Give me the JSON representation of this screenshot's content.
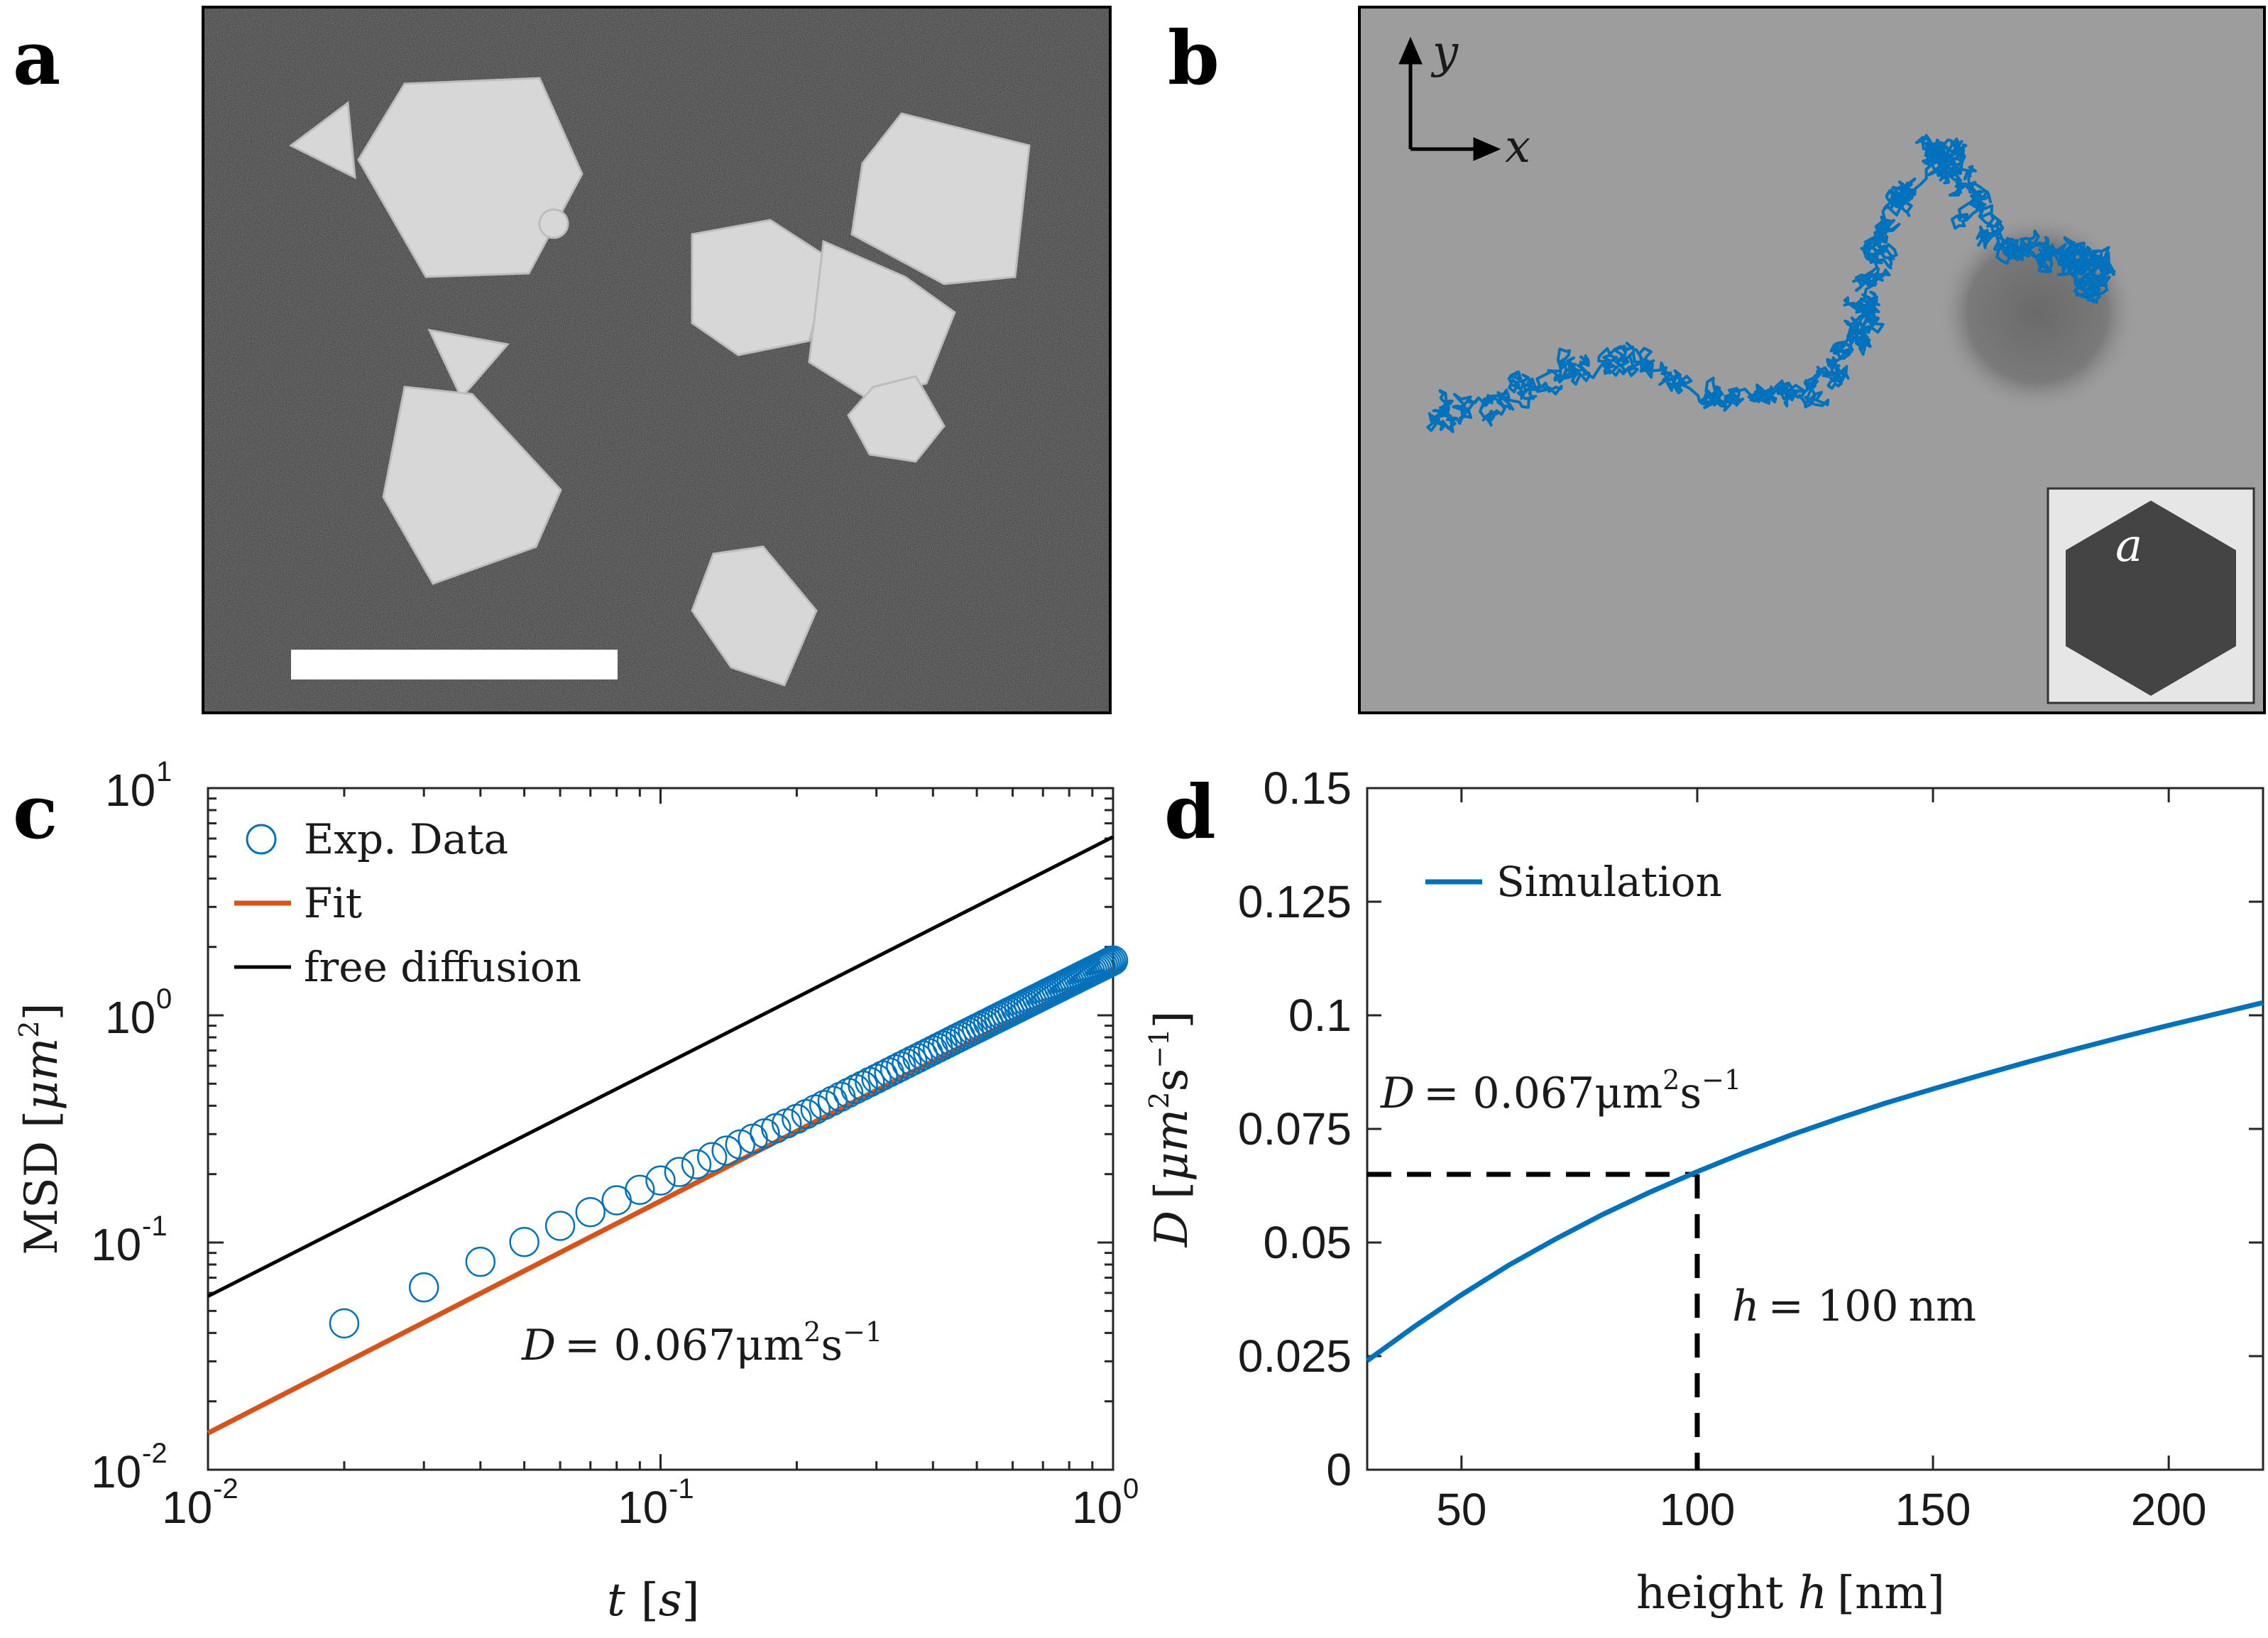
{
  "panels": {
    "a": {
      "letter": "a"
    },
    "b": {
      "letter": "b",
      "axis_y": "y",
      "axis_x": "x",
      "inset_label": "a"
    },
    "c": {
      "letter": "c"
    },
    "d": {
      "letter": "d"
    }
  },
  "colors": {
    "blue": "#0072BD",
    "orange": "#D95319",
    "black": "#000000"
  },
  "chart_data": [
    {
      "panel": "c",
      "type": "scatter",
      "scale": "log-log",
      "xlim": [
        0.01,
        1
      ],
      "ylim": [
        0.01,
        10
      ],
      "grid": false,
      "legend_placement": "top-left",
      "x_ticks": [
        "10",
        "10"
      ],
      "x_tick_exponents": [
        "-2",
        "-1",
        "0"
      ],
      "y_ticks": [
        "10",
        "10",
        "10",
        "10"
      ],
      "y_tick_exponents": [
        "-2",
        "-1",
        "0",
        "1"
      ],
      "xlabel": {
        "var": "t",
        "unit": "s"
      },
      "ylabel": {
        "name": "MSD",
        "unit": "μm",
        "unit_exp": "2"
      },
      "annotation": {
        "lhs": "D",
        "value": "= 0.067μm",
        "exp1": "2",
        "mid": "s",
        "exp2": "−1"
      },
      "series": [
        {
          "name": "Exp. Data",
          "kind": "markers",
          "x_start": 0.02,
          "x_step": 0.01,
          "x_end": 1.0,
          "model": {
            "coef": 1.49,
            "exponent": 0.9,
            "curve_gain": 0.17,
            "curve_from": 0.2
          }
        },
        {
          "name": "Fit",
          "kind": "line",
          "x": [
            0.01,
            1.0
          ],
          "y": [
            0.0145,
            1.6
          ]
        },
        {
          "name": "free diffusion",
          "kind": "line",
          "x": [
            0.01,
            1.0
          ],
          "y": [
            0.058,
            6.1
          ]
        }
      ]
    },
    {
      "panel": "d",
      "type": "line",
      "xlim": [
        30,
        220
      ],
      "ylim": [
        0,
        0.15
      ],
      "grid": false,
      "legend_placement": "top-left",
      "x_ticks": [
        "50",
        "100",
        "150",
        "200"
      ],
      "y_ticks": [
        "0",
        "0.025",
        "0.05",
        "0.075",
        "0.1",
        "0.125",
        "0.15"
      ],
      "xlabel": {
        "name": "height ",
        "var": "h",
        "unit": "nm"
      },
      "ylabel": {
        "var": "D",
        "unit": "μm",
        "unit_exp1": "2",
        "unit_mid": "s",
        "unit_exp2": "−1"
      },
      "annotations": {
        "d_value": {
          "lhs": "D",
          "value": "= 0.067μm",
          "exp1": "2",
          "mid": "s",
          "exp2": "−1"
        },
        "h_value": {
          "lhs": "h",
          "value": "= 100",
          "unit": "nm"
        }
      },
      "reference": {
        "x": 100,
        "y": 0.065
      },
      "series": [
        {
          "name": "Simulation",
          "x": [
            30,
            40,
            50,
            60,
            70,
            80,
            90,
            100,
            110,
            120,
            130,
            140,
            150,
            160,
            170,
            180,
            190,
            200,
            210,
            220
          ],
          "y": [
            0.024,
            0.0315,
            0.0385,
            0.045,
            0.0508,
            0.0562,
            0.0611,
            0.0656,
            0.0698,
            0.0737,
            0.0773,
            0.0807,
            0.0838,
            0.0868,
            0.0897,
            0.0925,
            0.0952,
            0.0978,
            0.1003,
            0.1028
          ]
        }
      ]
    }
  ]
}
